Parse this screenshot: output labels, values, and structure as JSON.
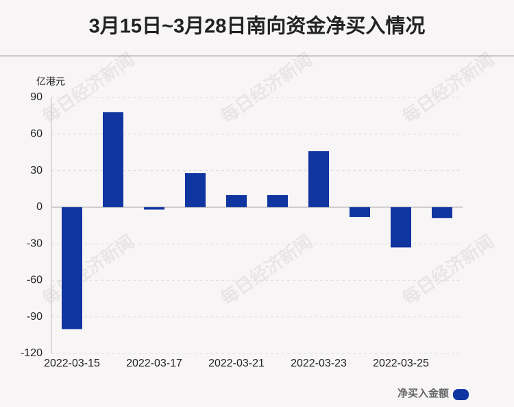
{
  "chart_data": {
    "type": "bar",
    "title": "3月15日~3月28日南向资金净买入情况",
    "y_label": "亿港元",
    "watermark": "每日经济新闻",
    "categories": [
      "2022-03-15",
      null,
      "2022-03-17",
      null,
      "2022-03-21",
      null,
      "2022-03-23",
      null,
      "2022-03-25",
      null
    ],
    "series": [
      {
        "name": "净买入金额",
        "color": "#1034a0",
        "values": [
          -100,
          78,
          -2,
          28,
          10,
          10,
          46,
          -8,
          -33,
          -9
        ]
      }
    ],
    "ylim": [
      -120,
      90
    ],
    "yticks": [
      -120,
      -90,
      -60,
      -30,
      0,
      30,
      60,
      90
    ],
    "grid": true,
    "legend": "bottom-right"
  }
}
